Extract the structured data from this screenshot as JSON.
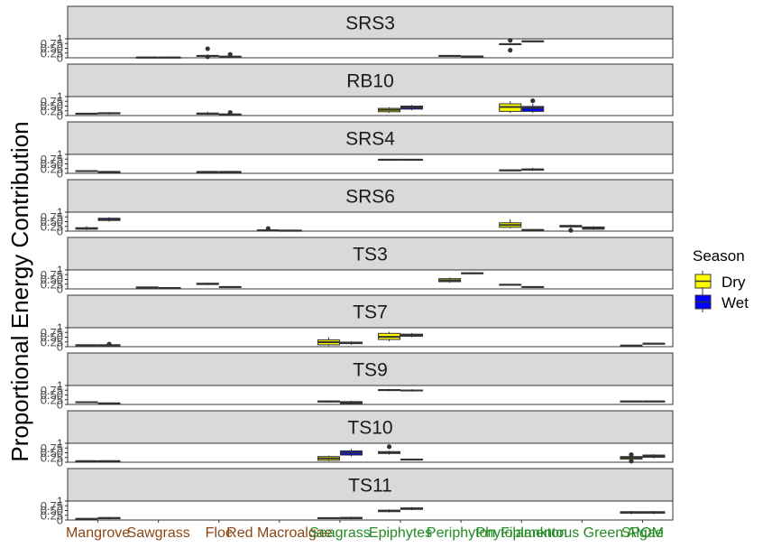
{
  "chart_data": {
    "type": "box",
    "ylabel": "Proportional Energy Contribution",
    "ylim": [
      0,
      1
    ],
    "y_ticks": [
      "0",
      "0.25",
      "0.50",
      "0.75",
      "1"
    ],
    "categories": [
      "Mangrove",
      "Sawgrass",
      "Floc",
      "Red Macroalgae",
      "Seagrass",
      "Epiphytes",
      "Periphyton",
      "Phytoplankton",
      "Filamentous Green Algae",
      "SPOM"
    ],
    "category_colors": [
      "#8b4513",
      "#8b4513",
      "#8b4513",
      "#8b4513",
      "#228b22",
      "#228b22",
      "#228b22",
      "#228b22",
      "#228b22",
      "#228b22"
    ],
    "legend": {
      "title": "Season",
      "entries": [
        {
          "name": "Dry",
          "color": "#ffff00"
        },
        {
          "name": "Wet",
          "color": "#0000ff"
        }
      ]
    },
    "panels": [
      {
        "site": "SRS3",
        "boxes": [
          {
            "cat": 1,
            "season": "Dry",
            "med": 0.02,
            "q1": 0.01,
            "q3": 0.03,
            "lo": 0.0,
            "hi": 0.04,
            "out": []
          },
          {
            "cat": 1,
            "season": "Wet",
            "med": 0.02,
            "q1": 0.01,
            "q3": 0.03,
            "lo": 0.0,
            "hi": 0.04,
            "out": []
          },
          {
            "cat": 2,
            "season": "Dry",
            "med": 0.1,
            "q1": 0.08,
            "q3": 0.12,
            "lo": 0.06,
            "hi": 0.14,
            "out": [
              0.48,
              0.05
            ]
          },
          {
            "cat": 2,
            "season": "Wet",
            "med": 0.06,
            "q1": 0.04,
            "q3": 0.08,
            "lo": 0.02,
            "hi": 0.1,
            "out": [
              0.18
            ]
          },
          {
            "cat": 6,
            "season": "Dry",
            "med": 0.1,
            "q1": 0.08,
            "q3": 0.12,
            "lo": 0.05,
            "hi": 0.15,
            "out": []
          },
          {
            "cat": 6,
            "season": "Wet",
            "med": 0.07,
            "q1": 0.05,
            "q3": 0.09,
            "lo": 0.02,
            "hi": 0.12,
            "out": []
          },
          {
            "cat": 7,
            "season": "Dry",
            "med": 0.72,
            "q1": 0.7,
            "q3": 0.74,
            "lo": 0.68,
            "hi": 0.76,
            "out": [
              0.92,
              0.4
            ]
          },
          {
            "cat": 7,
            "season": "Wet",
            "med": 0.87,
            "q1": 0.85,
            "q3": 0.89,
            "lo": 0.83,
            "hi": 0.91,
            "out": []
          }
        ]
      },
      {
        "site": "RB10",
        "boxes": [
          {
            "cat": 0,
            "season": "Dry",
            "med": 0.1,
            "q1": 0.08,
            "q3": 0.12,
            "lo": 0.05,
            "hi": 0.14,
            "out": []
          },
          {
            "cat": 0,
            "season": "Wet",
            "med": 0.12,
            "q1": 0.09,
            "q3": 0.15,
            "lo": 0.06,
            "hi": 0.18,
            "out": []
          },
          {
            "cat": 2,
            "season": "Dry",
            "med": 0.1,
            "q1": 0.07,
            "q3": 0.13,
            "lo": 0.04,
            "hi": 0.2,
            "out": []
          },
          {
            "cat": 2,
            "season": "Wet",
            "med": 0.06,
            "q1": 0.04,
            "q3": 0.08,
            "lo": 0.02,
            "hi": 0.1,
            "out": [
              0.16
            ]
          },
          {
            "cat": 5,
            "season": "Dry",
            "med": 0.3,
            "q1": 0.2,
            "q3": 0.38,
            "lo": 0.14,
            "hi": 0.44,
            "out": []
          },
          {
            "cat": 5,
            "season": "Wet",
            "med": 0.42,
            "q1": 0.34,
            "q3": 0.5,
            "lo": 0.28,
            "hi": 0.56,
            "out": []
          },
          {
            "cat": 7,
            "season": "Dry",
            "med": 0.45,
            "q1": 0.22,
            "q3": 0.62,
            "lo": 0.14,
            "hi": 0.76,
            "out": []
          },
          {
            "cat": 7,
            "season": "Wet",
            "med": 0.4,
            "q1": 0.22,
            "q3": 0.48,
            "lo": 0.14,
            "hi": 0.62,
            "out": [
              0.78
            ]
          }
        ]
      },
      {
        "site": "SRS4",
        "boxes": [
          {
            "cat": 0,
            "season": "Dry",
            "med": 0.12,
            "q1": 0.1,
            "q3": 0.14,
            "lo": 0.08,
            "hi": 0.16,
            "out": []
          },
          {
            "cat": 0,
            "season": "Wet",
            "med": 0.08,
            "q1": 0.07,
            "q3": 0.09,
            "lo": 0.06,
            "hi": 0.1,
            "out": []
          },
          {
            "cat": 2,
            "season": "Dry",
            "med": 0.08,
            "q1": 0.07,
            "q3": 0.09,
            "lo": 0.06,
            "hi": 0.1,
            "out": []
          },
          {
            "cat": 2,
            "season": "Wet",
            "med": 0.08,
            "q1": 0.07,
            "q3": 0.09,
            "lo": 0.06,
            "hi": 0.1,
            "out": []
          },
          {
            "cat": 5,
            "season": "Dry",
            "med": 0.72,
            "q1": 0.7,
            "q3": 0.74,
            "lo": 0.67,
            "hi": 0.76,
            "out": []
          },
          {
            "cat": 5,
            "season": "Wet",
            "med": 0.72,
            "q1": 0.7,
            "q3": 0.74,
            "lo": 0.67,
            "hi": 0.76,
            "out": []
          },
          {
            "cat": 7,
            "season": "Dry",
            "med": 0.16,
            "q1": 0.14,
            "q3": 0.18,
            "lo": 0.12,
            "hi": 0.2,
            "out": []
          },
          {
            "cat": 7,
            "season": "Wet",
            "med": 0.2,
            "q1": 0.17,
            "q3": 0.23,
            "lo": 0.12,
            "hi": 0.3,
            "out": []
          }
        ]
      },
      {
        "site": "SRS6",
        "boxes": [
          {
            "cat": 0,
            "season": "Dry",
            "med": 0.14,
            "q1": 0.1,
            "q3": 0.18,
            "lo": 0.05,
            "hi": 0.26,
            "out": []
          },
          {
            "cat": 0,
            "season": "Wet",
            "med": 0.6,
            "q1": 0.56,
            "q3": 0.68,
            "lo": 0.5,
            "hi": 0.74,
            "out": []
          },
          {
            "cat": 3,
            "season": "Dry",
            "med": 0.04,
            "q1": 0.02,
            "q3": 0.06,
            "lo": 0.0,
            "hi": 0.08,
            "out": [
              0.14
            ]
          },
          {
            "cat": 3,
            "season": "Wet",
            "med": 0.03,
            "q1": 0.02,
            "q3": 0.04,
            "lo": 0.0,
            "hi": 0.05,
            "out": []
          },
          {
            "cat": 7,
            "season": "Dry",
            "med": 0.32,
            "q1": 0.2,
            "q3": 0.44,
            "lo": 0.14,
            "hi": 0.62,
            "out": []
          },
          {
            "cat": 7,
            "season": "Wet",
            "med": 0.06,
            "q1": 0.04,
            "q3": 0.08,
            "lo": 0.02,
            "hi": 0.1,
            "out": []
          },
          {
            "cat": 8,
            "season": "Dry",
            "med": 0.26,
            "q1": 0.22,
            "q3": 0.3,
            "lo": 0.16,
            "hi": 0.34,
            "out": [
              0.04
            ]
          },
          {
            "cat": 8,
            "season": "Wet",
            "med": 0.16,
            "q1": 0.1,
            "q3": 0.22,
            "lo": 0.06,
            "hi": 0.26,
            "out": []
          }
        ]
      },
      {
        "site": "TS3",
        "boxes": [
          {
            "cat": 1,
            "season": "Dry",
            "med": 0.08,
            "q1": 0.06,
            "q3": 0.1,
            "lo": 0.04,
            "hi": 0.12,
            "out": []
          },
          {
            "cat": 1,
            "season": "Wet",
            "med": 0.05,
            "q1": 0.04,
            "q3": 0.06,
            "lo": 0.02,
            "hi": 0.08,
            "out": []
          },
          {
            "cat": 2,
            "season": "Dry",
            "med": 0.26,
            "q1": 0.23,
            "q3": 0.3,
            "lo": 0.2,
            "hi": 0.33,
            "out": []
          },
          {
            "cat": 2,
            "season": "Wet",
            "med": 0.1,
            "q1": 0.08,
            "q3": 0.12,
            "lo": 0.05,
            "hi": 0.14,
            "out": []
          },
          {
            "cat": 6,
            "season": "Dry",
            "med": 0.45,
            "q1": 0.38,
            "q3": 0.54,
            "lo": 0.32,
            "hi": 0.6,
            "out": []
          },
          {
            "cat": 6,
            "season": "Wet",
            "med": 0.82,
            "q1": 0.8,
            "q3": 0.85,
            "lo": 0.77,
            "hi": 0.88,
            "out": []
          },
          {
            "cat": 7,
            "season": "Dry",
            "med": 0.22,
            "q1": 0.2,
            "q3": 0.24,
            "lo": 0.18,
            "hi": 0.26,
            "out": []
          },
          {
            "cat": 7,
            "season": "Wet",
            "med": 0.1,
            "q1": 0.08,
            "q3": 0.12,
            "lo": 0.06,
            "hi": 0.14,
            "out": []
          }
        ]
      },
      {
        "site": "TS7",
        "boxes": [
          {
            "cat": 0,
            "season": "Dry",
            "med": 0.08,
            "q1": 0.06,
            "q3": 0.1,
            "lo": 0.04,
            "hi": 0.12,
            "out": []
          },
          {
            "cat": 0,
            "season": "Wet",
            "med": 0.08,
            "q1": 0.06,
            "q3": 0.1,
            "lo": 0.04,
            "hi": 0.12,
            "out": [
              0.14
            ]
          },
          {
            "cat": 4,
            "season": "Dry",
            "med": 0.24,
            "q1": 0.1,
            "q3": 0.36,
            "lo": 0.04,
            "hi": 0.5,
            "out": []
          },
          {
            "cat": 4,
            "season": "Wet",
            "med": 0.2,
            "q1": 0.16,
            "q3": 0.24,
            "lo": 0.1,
            "hi": 0.28,
            "out": []
          },
          {
            "cat": 5,
            "season": "Dry",
            "med": 0.52,
            "q1": 0.38,
            "q3": 0.7,
            "lo": 0.28,
            "hi": 0.78,
            "out": []
          },
          {
            "cat": 5,
            "season": "Wet",
            "med": 0.6,
            "q1": 0.55,
            "q3": 0.66,
            "lo": 0.5,
            "hi": 0.72,
            "out": []
          },
          {
            "cat": 9,
            "season": "Dry",
            "med": 0.06,
            "q1": 0.05,
            "q3": 0.07,
            "lo": 0.04,
            "hi": 0.08,
            "out": []
          },
          {
            "cat": 9,
            "season": "Wet",
            "med": 0.16,
            "q1": 0.14,
            "q3": 0.18,
            "lo": 0.12,
            "hi": 0.2,
            "out": []
          }
        ]
      },
      {
        "site": "TS9",
        "boxes": [
          {
            "cat": 0,
            "season": "Dry",
            "med": 0.12,
            "q1": 0.1,
            "q3": 0.14,
            "lo": 0.08,
            "hi": 0.16,
            "out": []
          },
          {
            "cat": 0,
            "season": "Wet",
            "med": 0.06,
            "q1": 0.05,
            "q3": 0.07,
            "lo": 0.04,
            "hi": 0.08,
            "out": []
          },
          {
            "cat": 4,
            "season": "Dry",
            "med": 0.16,
            "q1": 0.13,
            "q3": 0.18,
            "lo": 0.1,
            "hi": 0.2,
            "out": []
          },
          {
            "cat": 4,
            "season": "Wet",
            "med": 0.1,
            "q1": 0.05,
            "q3": 0.15,
            "lo": 0.0,
            "hi": 0.2,
            "out": []
          },
          {
            "cat": 5,
            "season": "Dry",
            "med": 0.76,
            "q1": 0.74,
            "q3": 0.78,
            "lo": 0.7,
            "hi": 0.82,
            "out": []
          },
          {
            "cat": 5,
            "season": "Wet",
            "med": 0.74,
            "q1": 0.72,
            "q3": 0.76,
            "lo": 0.68,
            "hi": 0.8,
            "out": []
          },
          {
            "cat": 9,
            "season": "Dry",
            "med": 0.16,
            "q1": 0.14,
            "q3": 0.18,
            "lo": 0.12,
            "hi": 0.2,
            "out": []
          },
          {
            "cat": 9,
            "season": "Wet",
            "med": 0.16,
            "q1": 0.14,
            "q3": 0.18,
            "lo": 0.12,
            "hi": 0.2,
            "out": []
          }
        ]
      },
      {
        "site": "TS10",
        "boxes": [
          {
            "cat": 0,
            "season": "Dry",
            "med": 0.06,
            "q1": 0.05,
            "q3": 0.07,
            "lo": 0.04,
            "hi": 0.08,
            "out": []
          },
          {
            "cat": 0,
            "season": "Wet",
            "med": 0.06,
            "q1": 0.05,
            "q3": 0.07,
            "lo": 0.04,
            "hi": 0.08,
            "out": []
          },
          {
            "cat": 4,
            "season": "Dry",
            "med": 0.2,
            "q1": 0.1,
            "q3": 0.3,
            "lo": 0.05,
            "hi": 0.35,
            "out": []
          },
          {
            "cat": 4,
            "season": "Wet",
            "med": 0.5,
            "q1": 0.38,
            "q3": 0.6,
            "lo": 0.3,
            "hi": 0.7,
            "out": []
          },
          {
            "cat": 5,
            "season": "Dry",
            "med": 0.5,
            "q1": 0.46,
            "q3": 0.56,
            "lo": 0.4,
            "hi": 0.6,
            "out": [
              0.82
            ]
          },
          {
            "cat": 5,
            "season": "Wet",
            "med": 0.14,
            "q1": 0.12,
            "q3": 0.16,
            "lo": 0.1,
            "hi": 0.18,
            "out": []
          },
          {
            "cat": 9,
            "season": "Dry",
            "med": 0.24,
            "q1": 0.16,
            "q3": 0.3,
            "lo": 0.1,
            "hi": 0.36,
            "out": [
              0.4,
              0.06
            ]
          },
          {
            "cat": 9,
            "season": "Wet",
            "med": 0.32,
            "q1": 0.26,
            "q3": 0.38,
            "lo": 0.2,
            "hi": 0.42,
            "out": []
          }
        ]
      },
      {
        "site": "TS11",
        "boxes": [
          {
            "cat": 0,
            "season": "Dry",
            "med": 0.06,
            "q1": 0.05,
            "q3": 0.08,
            "lo": 0.04,
            "hi": 0.1,
            "out": []
          },
          {
            "cat": 0,
            "season": "Wet",
            "med": 0.1,
            "q1": 0.07,
            "q3": 0.13,
            "lo": 0.04,
            "hi": 0.16,
            "out": []
          },
          {
            "cat": 4,
            "season": "Dry",
            "med": 0.1,
            "q1": 0.08,
            "q3": 0.12,
            "lo": 0.06,
            "hi": 0.14,
            "out": []
          },
          {
            "cat": 4,
            "season": "Wet",
            "med": 0.1,
            "q1": 0.07,
            "q3": 0.14,
            "lo": 0.04,
            "hi": 0.18,
            "out": []
          },
          {
            "cat": 5,
            "season": "Dry",
            "med": 0.48,
            "q1": 0.44,
            "q3": 0.52,
            "lo": 0.4,
            "hi": 0.56,
            "out": []
          },
          {
            "cat": 5,
            "season": "Wet",
            "med": 0.6,
            "q1": 0.56,
            "q3": 0.64,
            "lo": 0.52,
            "hi": 0.68,
            "out": []
          },
          {
            "cat": 9,
            "season": "Dry",
            "med": 0.4,
            "q1": 0.36,
            "q3": 0.44,
            "lo": 0.3,
            "hi": 0.48,
            "out": []
          },
          {
            "cat": 9,
            "season": "Wet",
            "med": 0.4,
            "q1": 0.36,
            "q3": 0.44,
            "lo": 0.3,
            "hi": 0.48,
            "out": []
          }
        ]
      }
    ]
  }
}
